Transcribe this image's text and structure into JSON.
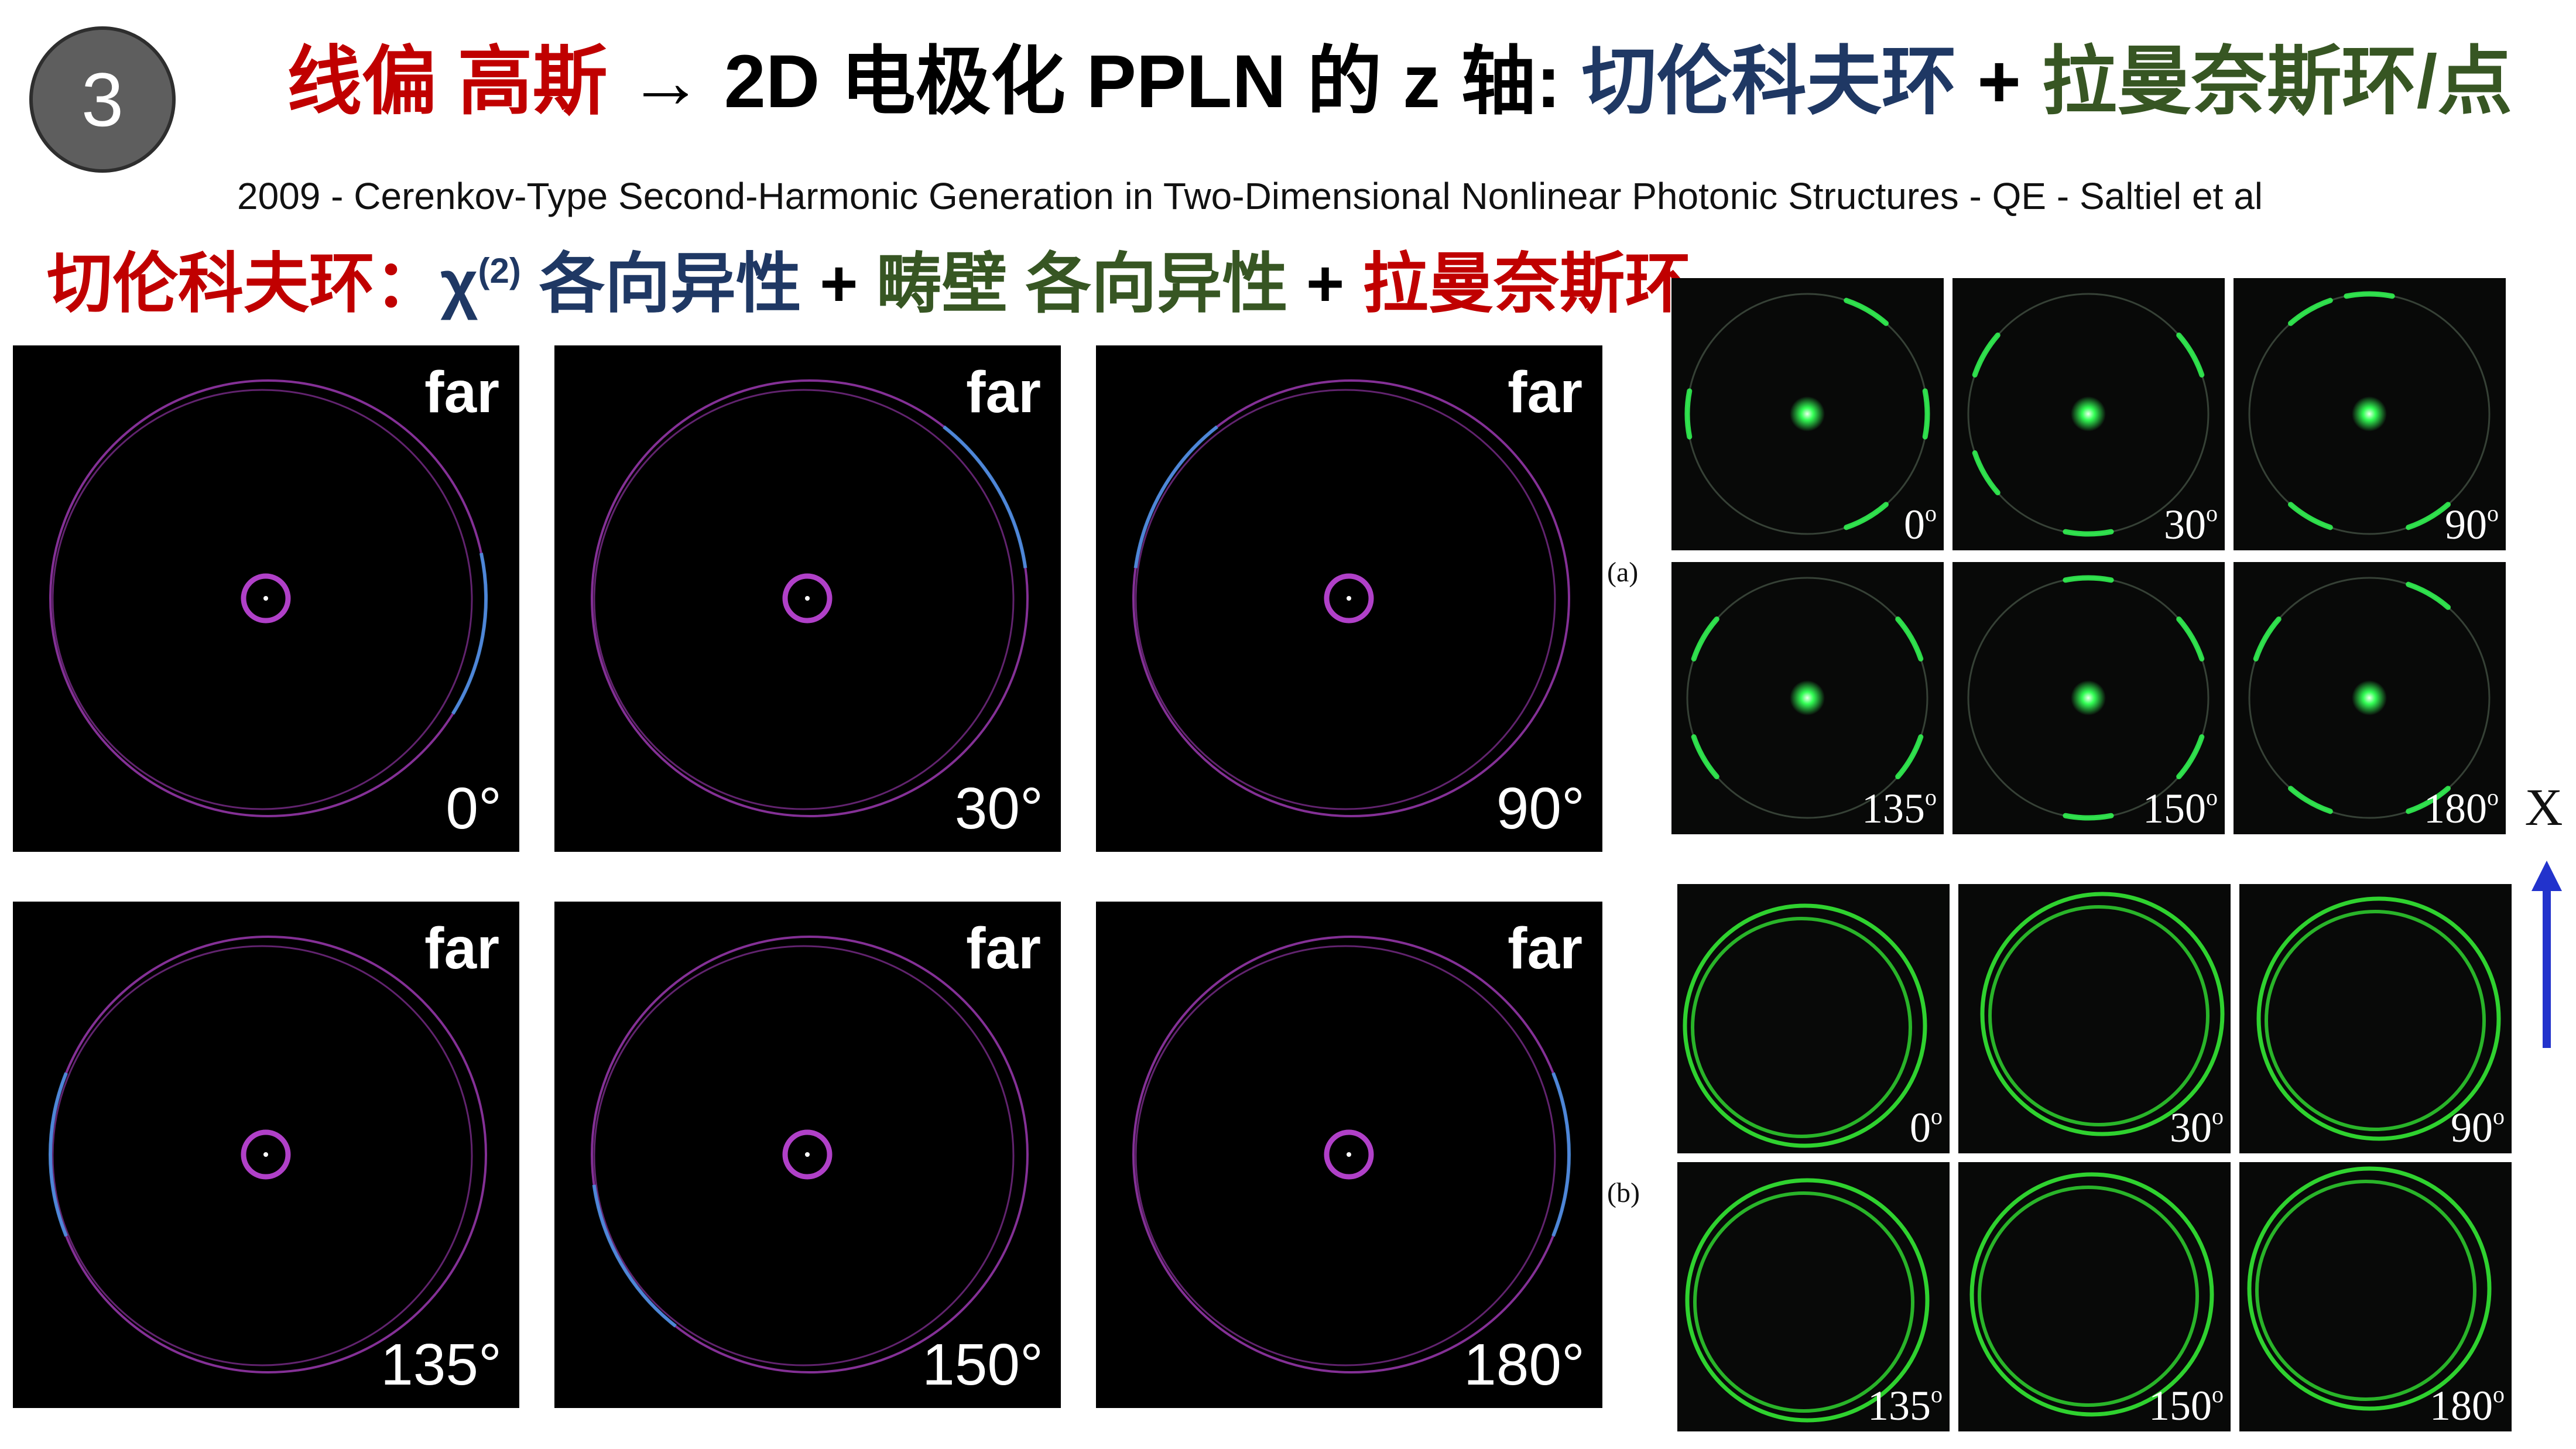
{
  "slide_number": "3",
  "title": {
    "part1": "线偏 高斯",
    "part2": " → 2D 电极化 PPLN 的 z 轴: ",
    "part3": "切伦科夫环",
    "part4": " + ",
    "part5": "拉曼奈斯环/点"
  },
  "citation": "2009 - Cerenkov-Type Second-Harmonic Generation in Two-Dimensional Nonlinear Photonic Structures - QE - Saltiel et al",
  "subtitle": {
    "s1": "切伦科夫环：",
    "s2": "χ",
    "s2_sup": "(2)",
    "s3": " 各向异性",
    "s4": " + ",
    "s5": "畴壁 各向异性",
    "s6": " + ",
    "s7": "拉曼奈斯环"
  },
  "simulations": [
    {
      "tag": "far",
      "angle": "0°"
    },
    {
      "tag": "far",
      "angle": "30°"
    },
    {
      "tag": "far",
      "angle": "90°"
    },
    {
      "tag": "far",
      "angle": "135°"
    },
    {
      "tag": "far",
      "angle": "150°"
    },
    {
      "tag": "far",
      "angle": "180°"
    }
  ],
  "panel_a": {
    "label": "(a)",
    "degree_mark": "o",
    "images": [
      {
        "angle": "0"
      },
      {
        "angle": "30"
      },
      {
        "angle": "90"
      },
      {
        "angle": "135"
      },
      {
        "angle": "150"
      },
      {
        "angle": "180"
      }
    ]
  },
  "panel_b": {
    "label": "(b)",
    "degree_mark": "o",
    "images": [
      {
        "angle": "0"
      },
      {
        "angle": "30"
      },
      {
        "angle": "90"
      },
      {
        "angle": "135"
      },
      {
        "angle": "150"
      },
      {
        "angle": "180"
      }
    ]
  },
  "axis_label": "X",
  "colors": {
    "title_red": "#c00000",
    "title_black": "#000000",
    "navy": "#1f3864",
    "dark_green": "#375623",
    "ring_magenta": "#b040c8",
    "ring_blue": "#4a90e0",
    "spot_green": "#33ff55",
    "ring_green": "#2fd22f",
    "arrow_blue": "#2233cc"
  }
}
